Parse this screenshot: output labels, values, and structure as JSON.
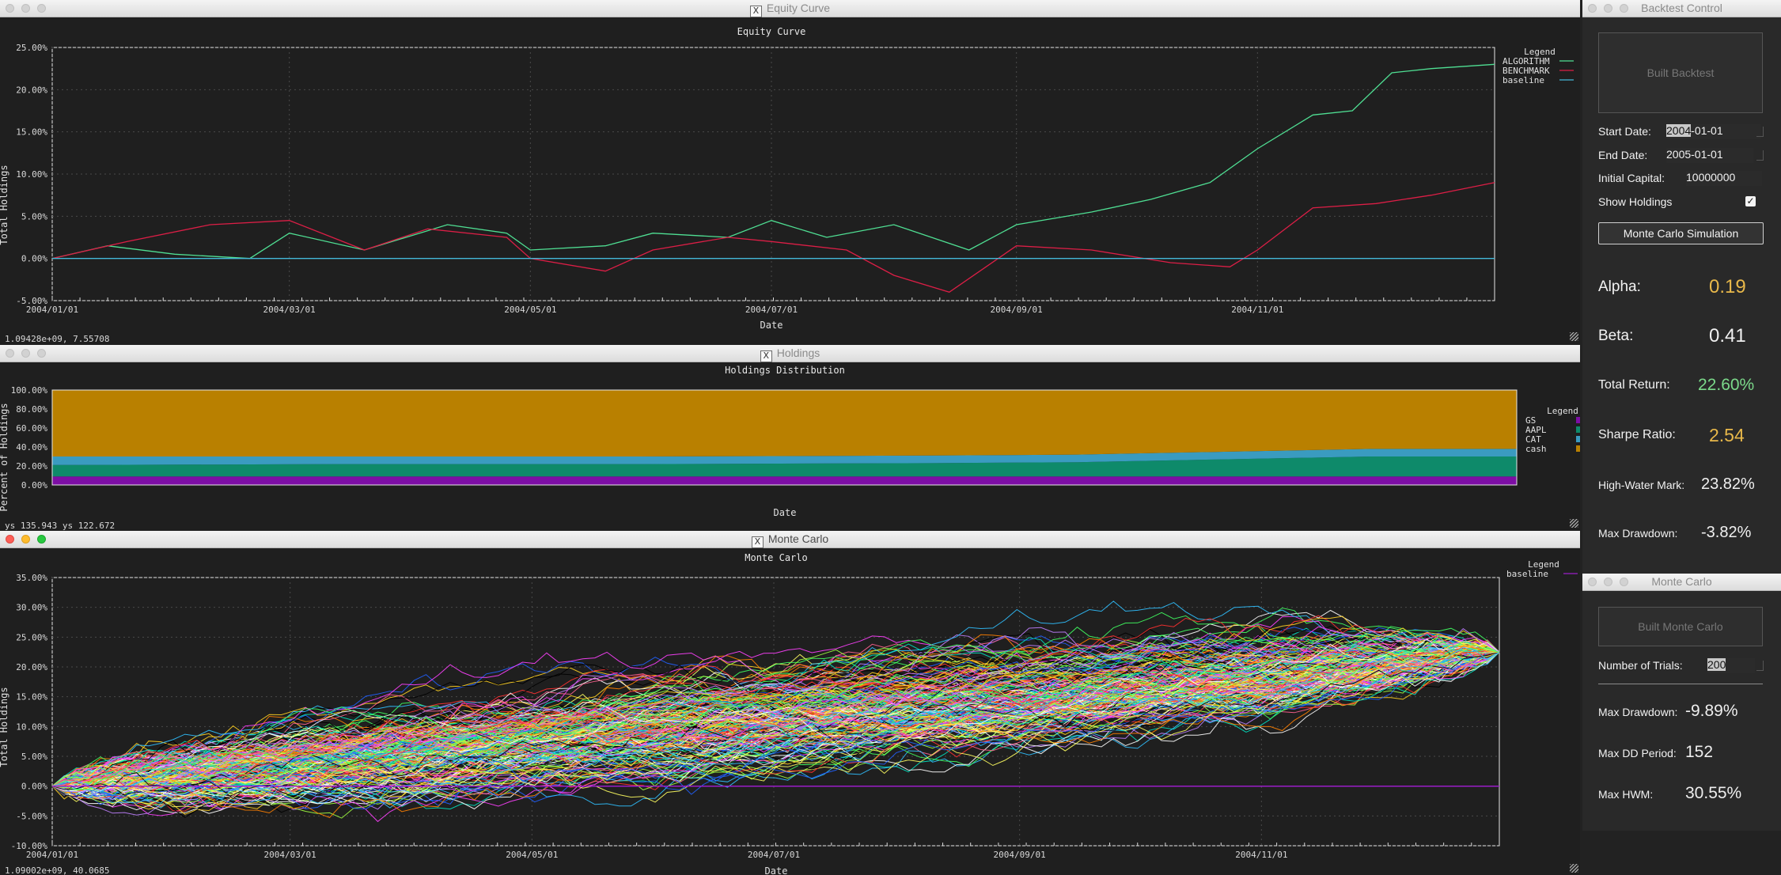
{
  "equity": {
    "window_title": "Equity Curve",
    "status": "1.09428e+09,  7.55708",
    "chart_data": {
      "type": "line",
      "title": "Equity Curve",
      "xlabel": "Date",
      "ylabel": "Total Holdings",
      "x_ticks": [
        "2004/01/01",
        "2004/03/01",
        "2004/05/01",
        "2004/07/01",
        "2004/09/01",
        "2004/11/01"
      ],
      "y_ticks": [
        "-5.00%",
        "0.00%",
        "5.00%",
        "10.00%",
        "15.00%",
        "20.00%",
        "25.00%"
      ],
      "ylim": [
        -5,
        25
      ],
      "x_range": [
        "2004/01/01",
        "2004/12/31"
      ],
      "legend_title": "Legend",
      "legend_position": "top-right",
      "grid": true,
      "series": [
        {
          "name": "ALGORITHM",
          "color": "#4fdf93",
          "x": [
            "2004/01/01",
            "2004/01/15",
            "2004/02/01",
            "2004/02/20",
            "2004/03/01",
            "2004/03/20",
            "2004/04/10",
            "2004/04/25",
            "2004/05/01",
            "2004/05/20",
            "2004/06/01",
            "2004/06/20",
            "2004/07/01",
            "2004/07/15",
            "2004/08/01",
            "2004/08/20",
            "2004/09/01",
            "2004/09/20",
            "2004/10/05",
            "2004/10/20",
            "2004/11/01",
            "2004/11/15",
            "2004/11/25",
            "2004/12/05",
            "2004/12/15",
            "2004/12/31"
          ],
          "values": [
            0,
            1.5,
            0.5,
            0,
            3,
            1,
            4,
            3,
            1,
            1.5,
            3,
            2.5,
            4.5,
            2.5,
            4,
            1,
            4,
            5.5,
            7,
            9,
            13,
            17,
            17.5,
            22,
            22.5,
            23
          ]
        },
        {
          "name": "BENCHMARK",
          "color": "#dc1e46",
          "x": [
            "2004/01/01",
            "2004/01/20",
            "2004/02/10",
            "2004/03/01",
            "2004/03/20",
            "2004/04/05",
            "2004/04/25",
            "2004/05/01",
            "2004/05/20",
            "2004/06/01",
            "2004/06/20",
            "2004/07/01",
            "2004/07/20",
            "2004/08/01",
            "2004/08/15",
            "2004/09/01",
            "2004/09/20",
            "2004/10/10",
            "2004/10/25",
            "2004/11/01",
            "2004/11/15",
            "2004/12/01",
            "2004/12/15",
            "2004/12/31"
          ],
          "values": [
            0,
            2,
            4,
            4.5,
            1,
            3.5,
            2.5,
            0,
            -1.5,
            1,
            2.5,
            2,
            1,
            -2,
            -4,
            1.5,
            1,
            -0.5,
            -1,
            1,
            6,
            6.5,
            7.5,
            9
          ]
        },
        {
          "name": "baseline",
          "color": "#44b8d8",
          "x": [
            "2004/01/01",
            "2004/12/31"
          ],
          "values": [
            0,
            0
          ]
        }
      ]
    }
  },
  "holdings": {
    "window_title": "Holdings",
    "status": "ys    135.943 ys    122.672",
    "chart_data": {
      "type": "area",
      "title": "Holdings Distribution",
      "xlabel": "Date",
      "ylabel": "Percent of Holdings",
      "y_ticks": [
        "0.00%",
        "20.00%",
        "40.00%",
        "60.00%",
        "80.00%",
        "100.00%"
      ],
      "ylim": [
        0,
        100
      ],
      "legend_title": "Legend",
      "legend_position": "top-right",
      "x": [
        0,
        0.2,
        0.4,
        0.6,
        0.7,
        0.8,
        0.9,
        1.0
      ],
      "series": [
        {
          "name": "GS",
          "color": "#7d0ea5",
          "values": [
            9,
            9,
            9,
            9,
            9,
            9,
            9,
            9
          ]
        },
        {
          "name": "AAPL",
          "color": "#0e8a6a",
          "values": [
            12,
            13,
            13,
            14,
            15,
            18,
            21,
            21
          ]
        },
        {
          "name": "CAT",
          "color": "#3a9bc0",
          "values": [
            9,
            8,
            8,
            8,
            8,
            8,
            8,
            8
          ]
        },
        {
          "name": "cash",
          "color": "#b98000",
          "values": [
            70,
            70,
            70,
            69,
            68,
            65,
            62,
            62
          ]
        }
      ]
    }
  },
  "montecarlo": {
    "window_title": "Monte Carlo",
    "status": "1.09002e+09,  40.0685",
    "chart_data": {
      "type": "line",
      "title": "Monte Carlo",
      "xlabel": "Date",
      "ylabel": "Total Holdings",
      "x_ticks": [
        "2004/01/01",
        "2004/03/01",
        "2004/05/01",
        "2004/07/01",
        "2004/09/01",
        "2004/11/01"
      ],
      "y_ticks": [
        "-10.00%",
        "-5.00%",
        "0.00%",
        "5.00%",
        "10.00%",
        "15.00%",
        "20.00%",
        "25.00%",
        "30.00%",
        "35.00%"
      ],
      "ylim": [
        -10,
        35
      ],
      "legend_title": "Legend",
      "legend_position": "top-right",
      "grid": true,
      "num_paths": 200,
      "path_end_value": 22.5,
      "path_colors": [
        "#ff3030",
        "#ffd020",
        "#30c0ff",
        "#40ff60",
        "#ff40ff",
        "#ffffff",
        "#ff8000",
        "#2060ff",
        "#00e0c0",
        "#c080ff",
        "#a0ff40",
        "#ff6090",
        "#000000",
        "#ffff60"
      ],
      "series": [
        {
          "name": "baseline",
          "color": "#9a1dc8",
          "x": [
            "2004/01/01",
            "2004/12/31"
          ],
          "values": [
            0,
            0
          ]
        }
      ]
    }
  },
  "control": {
    "window_title": "Backtest Control",
    "built_backtest": "Built Backtest",
    "start_label": "Start Date:",
    "start_sel": "2004",
    "start_rest": "-01-01",
    "end_label": "End Date:",
    "end_value": "2005-01-01",
    "capital_label": "Initial Capital:",
    "capital_value": "10000000",
    "show_holdings_label": "Show Holdings",
    "show_holdings_check": "✓",
    "mc_button": "Monte Carlo Simulation",
    "alpha_label": "Alpha:",
    "alpha_value": "0.19",
    "alpha_color": "#e8b84a",
    "beta_label": "Beta:",
    "beta_value": "0.41",
    "beta_color": "#f0f0f0",
    "total_return_label": "Total Return:",
    "total_return_value": "22.60%",
    "total_return_color": "#7bd98a",
    "sharpe_label": "Sharpe Ratio:",
    "sharpe_value": "2.54",
    "sharpe_color": "#e8b84a",
    "hwm_label": "High-Water Mark:",
    "hwm_value": "23.82%",
    "hwm_color": "#f0f0f0",
    "maxdd_label": "Max Drawdown:",
    "maxdd_value": "-3.82%",
    "maxdd_color": "#f0f0f0"
  },
  "mc_panel": {
    "window_title": "Monte Carlo",
    "built_button": "Built Monte Carlo",
    "trials_label": "Number of Trials:",
    "trials_value": "200",
    "maxdd_label": "Max Drawdown:",
    "maxdd_value": "-9.89%",
    "ddperiod_label": "Max DD Period:",
    "ddperiod_value": "152",
    "hwm_label": "Max HWM:",
    "hwm_value": "30.55%"
  }
}
